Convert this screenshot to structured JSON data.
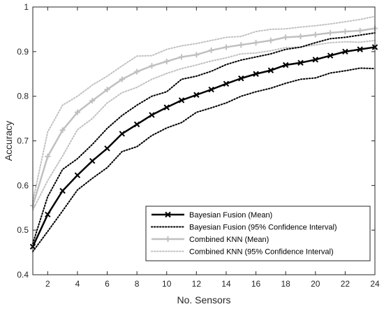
{
  "chart_data": {
    "type": "line",
    "title": "",
    "xlabel": "No. Sensors",
    "ylabel": "Accuracy",
    "xlim": [
      1,
      24
    ],
    "ylim": [
      0.4,
      1.0
    ],
    "xticks": [
      2,
      4,
      6,
      8,
      10,
      12,
      14,
      16,
      18,
      20,
      22,
      24
    ],
    "yticks": [
      0.4,
      0.5,
      0.6,
      0.7,
      0.8,
      0.9,
      1.0
    ],
    "ytick_labels": [
      "0.4",
      "0.5",
      "0.6",
      "0.7",
      "0.8",
      "0.9",
      "1"
    ],
    "grid": false,
    "legend_placement": "bottom-right",
    "x": [
      1,
      2,
      3,
      4,
      5,
      6,
      7,
      8,
      9,
      10,
      11,
      12,
      13,
      14,
      15,
      16,
      17,
      18,
      19,
      20,
      21,
      22,
      23,
      24
    ],
    "series": [
      {
        "name": "Bayesian Fusion (Mean)",
        "color": "#000000",
        "style": "solid-marker-x",
        "values": [
          0.463,
          0.535,
          0.588,
          0.623,
          0.655,
          0.683,
          0.716,
          0.737,
          0.758,
          0.775,
          0.791,
          0.803,
          0.815,
          0.828,
          0.84,
          0.85,
          0.858,
          0.87,
          0.875,
          0.882,
          0.891,
          0.9,
          0.905,
          0.91
        ]
      },
      {
        "name": "Bayesian Fusion (95% Confidence Interval)",
        "color": "#000000",
        "style": "dotted",
        "upper": [
          0.47,
          0.575,
          0.636,
          0.66,
          0.692,
          0.728,
          0.757,
          0.78,
          0.8,
          0.81,
          0.838,
          0.845,
          0.856,
          0.871,
          0.881,
          0.888,
          0.895,
          0.905,
          0.91,
          0.92,
          0.929,
          0.932,
          0.937,
          0.942
        ],
        "lower": [
          0.452,
          0.497,
          0.543,
          0.59,
          0.616,
          0.64,
          0.676,
          0.687,
          0.712,
          0.729,
          0.741,
          0.764,
          0.774,
          0.785,
          0.8,
          0.81,
          0.818,
          0.829,
          0.838,
          0.841,
          0.852,
          0.857,
          0.863,
          0.862
        ]
      },
      {
        "name": "Combined KNN (Mean)",
        "color": "#c0c0c0",
        "style": "solid-marker-plus",
        "values": [
          0.555,
          0.665,
          0.724,
          0.764,
          0.79,
          0.815,
          0.838,
          0.855,
          0.868,
          0.878,
          0.888,
          0.893,
          0.903,
          0.91,
          0.915,
          0.92,
          0.925,
          0.932,
          0.934,
          0.938,
          0.942,
          0.945,
          0.947,
          0.952
        ]
      },
      {
        "name": "Combined KNN (95% Confidence Interval)",
        "color": "#c0c0c0",
        "style": "dotted",
        "upper": [
          0.565,
          0.72,
          0.78,
          0.8,
          0.825,
          0.845,
          0.868,
          0.89,
          0.891,
          0.905,
          0.913,
          0.918,
          0.925,
          0.932,
          0.934,
          0.945,
          0.95,
          0.951,
          0.955,
          0.958,
          0.962,
          0.967,
          0.972,
          0.979
        ],
        "lower": [
          0.545,
          0.611,
          0.666,
          0.725,
          0.75,
          0.785,
          0.808,
          0.82,
          0.838,
          0.851,
          0.862,
          0.87,
          0.879,
          0.886,
          0.895,
          0.897,
          0.902,
          0.909,
          0.91,
          0.915,
          0.92,
          0.922,
          0.921,
          0.925
        ]
      }
    ],
    "legend": [
      "Bayesian Fusion (Mean)",
      "Bayesian Fusion (95% Confidence Interval)",
      "Combined KNN (Mean)",
      "Combined KNN (95% Confidence Interval)"
    ]
  }
}
